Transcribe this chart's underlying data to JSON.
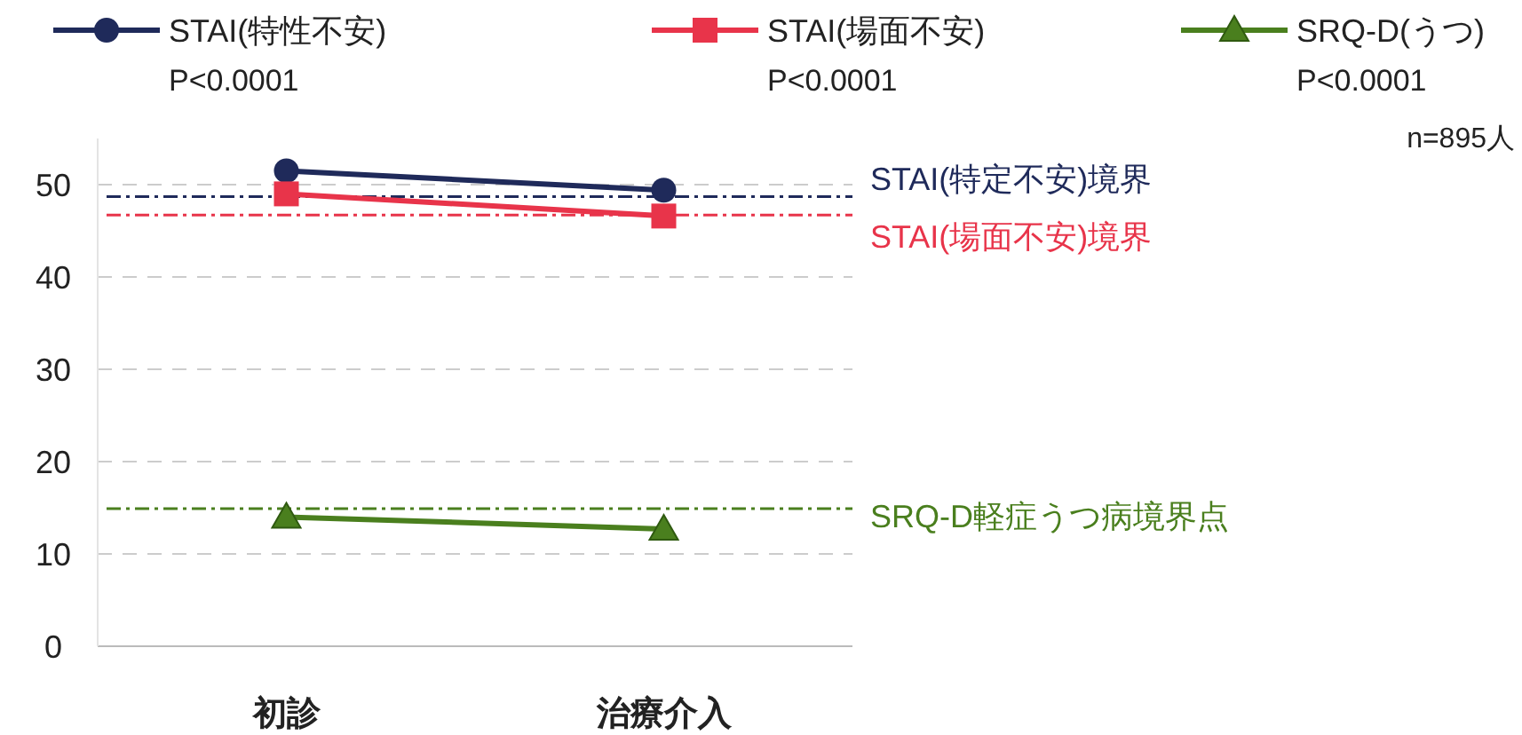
{
  "chart_data": {
    "type": "line",
    "categories": [
      "初診",
      "治療介入"
    ],
    "series": [
      {
        "name": "STAI(特性不安)",
        "color": "#1f2a5a",
        "values": [
          51.5,
          49.4
        ],
        "marker": "circle"
      },
      {
        "name": "STAI(場面不安)",
        "color": "#e8344a",
        "values": [
          49,
          46.6
        ],
        "marker": "square"
      },
      {
        "name": "SRQ-D(うつ)",
        "color": "#4a7f1e",
        "values": [
          14,
          12.7
        ],
        "marker": "triangle"
      }
    ],
    "ylim": [
      0,
      55
    ],
    "yticks": [
      0,
      10,
      20,
      30,
      40,
      50
    ],
    "grid": "y",
    "legend": "top",
    "ref_lines": [
      {
        "axis": "y",
        "value": 48.7,
        "label": "STAI(特定不安)境界",
        "color": "#1f2a5a",
        "line_style": "dashdot"
      },
      {
        "axis": "y",
        "value": 46.7,
        "label": "STAI(場面不安)境界",
        "color": "#e8344a",
        "line_style": "dashdot"
      },
      {
        "axis": "y",
        "value": 14.9,
        "label": "SRQ-D軽症うつ病境界点",
        "color": "#4a7f1e",
        "line_style": "dashdot"
      }
    ],
    "annotations": [
      "P<0.0001",
      "P<0.0001",
      "P<0.0001",
      "n=895人"
    ]
  }
}
